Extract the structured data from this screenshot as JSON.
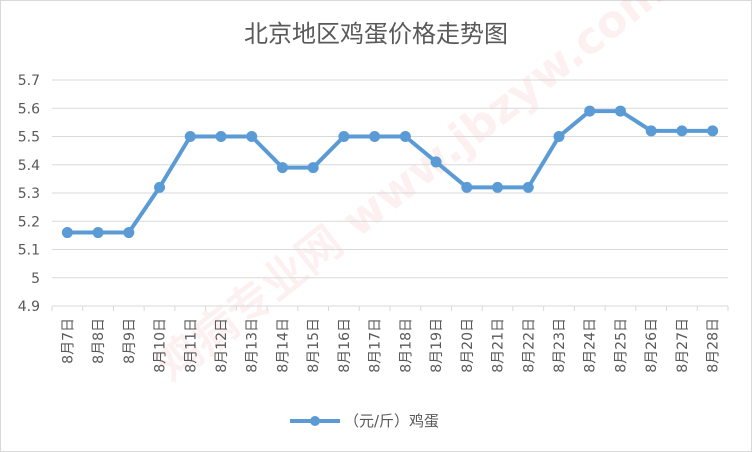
{
  "chart_data": {
    "type": "line",
    "title": "北京地区鸡蛋价格走势图",
    "categories": [
      "8月7日",
      "8月8日",
      "8月9日",
      "8月10日",
      "8月11日",
      "8月12日",
      "8月13日",
      "8月14日",
      "8月15日",
      "8月16日",
      "8月17日",
      "8月18日",
      "8月19日",
      "8月20日",
      "8月21日",
      "8月22日",
      "8月23日",
      "8月24日",
      "8月25日",
      "8月26日",
      "8月27日",
      "8月28日"
    ],
    "series": [
      {
        "name": "（元/斤）鸡蛋",
        "values": [
          5.16,
          5.16,
          5.16,
          5.32,
          5.5,
          5.5,
          5.5,
          5.39,
          5.39,
          5.5,
          5.5,
          5.5,
          5.41,
          5.32,
          5.32,
          5.32,
          5.5,
          5.59,
          5.59,
          5.52,
          5.52,
          5.52
        ]
      }
    ],
    "y_ticks": [
      "4.9",
      "5",
      "5.1",
      "5.2",
      "5.3",
      "5.4",
      "5.5",
      "5.6",
      "5.7"
    ],
    "ylim": [
      4.9,
      5.7
    ],
    "grid": true,
    "legend": "bottom",
    "series_color": "#5b9bd5",
    "watermark": "鸡病专业网 www.jbzyw.com"
  }
}
